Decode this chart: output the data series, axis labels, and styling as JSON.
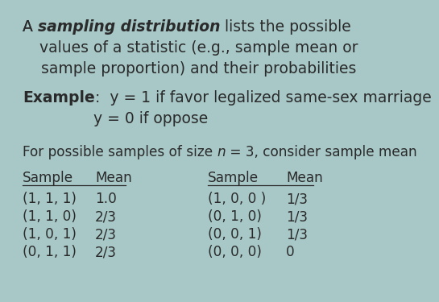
{
  "bg_color": "#a8c8c8",
  "text_color": "#2a2a2a",
  "fs_main": 13.5,
  "fs_small": 12.2,
  "title_prefix": "A ",
  "title_bold_italic": "sampling distribution",
  "title_suffix": " lists the possible",
  "title_line2": "values of a statistic (e.g., sample mean or",
  "title_line3": "sample proportion) and their probabilities",
  "example_bold": "Example",
  "example_colon": ":  y = 1 if favor legalized same-sex marriage",
  "example_line2": "y = 0 if oppose",
  "for_prefix": "For possible samples of size ",
  "for_n": "n",
  "for_suffix": " = 3, consider sample mean",
  "left_samples": [
    "(1, 1, 1)",
    "(1, 1, 0)",
    "(1, 0, 1)",
    "(0, 1, 1)"
  ],
  "left_means": [
    "1.0",
    "2/3",
    "2/3",
    "2/3"
  ],
  "right_samples": [
    "(1, 0, 0 )",
    "(0, 1, 0)",
    "(0, 0, 1)",
    "(0, 0, 0)"
  ],
  "right_means": [
    "1/3",
    "1/3",
    "1/3",
    "0"
  ]
}
